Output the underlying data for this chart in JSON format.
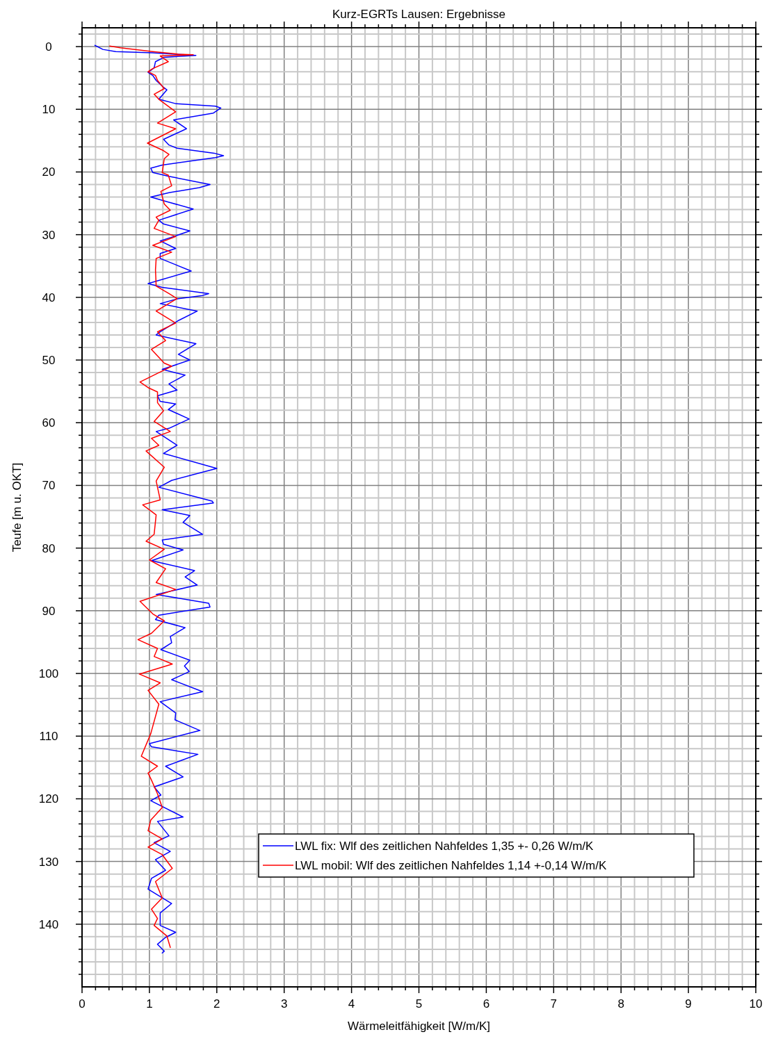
{
  "chart_data": {
    "type": "line",
    "title": "Kurz-EGRTs Lausen: Ergebnisse",
    "xlabel": "Wärmeleitfähigkeit [W/m/K]",
    "ylabel": "Teufe [m u. OKT]",
    "xlim": [
      0,
      10
    ],
    "ylim": [
      150,
      -3
    ],
    "xticks": [
      0,
      {
        "value": 0.2,
        "label": null
      },
      {
        "value": 0.4,
        "label": null
      },
      {
        "value": 0.6,
        "label": null
      },
      {
        "value": 0.8,
        "label": null
      },
      1,
      {
        "value": 1.2,
        "label": null
      },
      {
        "value": 1.4,
        "label": null
      },
      {
        "value": 1.6,
        "label": null
      },
      {
        "value": 1.8,
        "label": null
      },
      2,
      {
        "value": 2.2,
        "label": null
      },
      {
        "value": 2.4,
        "label": null
      },
      {
        "value": 2.6,
        "label": null
      },
      {
        "value": 2.8,
        "label": null
      },
      3,
      {
        "value": 3.2,
        "label": null
      },
      {
        "value": 3.4,
        "label": null
      },
      {
        "value": 3.6,
        "label": null
      },
      {
        "value": 3.8,
        "label": null
      },
      4,
      {
        "value": 4.2,
        "label": null
      },
      {
        "value": 4.4,
        "label": null
      },
      {
        "value": 4.6,
        "label": null
      },
      {
        "value": 4.8,
        "label": null
      },
      5,
      {
        "value": 5.2,
        "label": null
      },
      {
        "value": 5.4,
        "label": null
      },
      {
        "value": 5.6,
        "label": null
      },
      {
        "value": 5.8,
        "label": null
      },
      6,
      {
        "value": 6.2,
        "label": null
      },
      {
        "value": 6.4,
        "label": null
      },
      {
        "value": 6.6,
        "label": null
      },
      {
        "value": 6.8,
        "label": null
      },
      7,
      {
        "value": 7.2,
        "label": null
      },
      {
        "value": 7.4,
        "label": null
      },
      {
        "value": 7.6,
        "label": null
      },
      {
        "value": 7.8,
        "label": null
      },
      8,
      {
        "value": 8.2,
        "label": null
      },
      {
        "value": 8.4,
        "label": null
      },
      {
        "value": 8.6,
        "label": null
      },
      {
        "value": 8.8,
        "label": null
      },
      9,
      {
        "value": 9.2,
        "label": null
      },
      {
        "value": 9.4,
        "label": null
      },
      {
        "value": 9.6,
        "label": null
      },
      {
        "value": 9.8,
        "label": null
      },
      10
    ],
    "yticks": [
      {
        "value": -2,
        "label": null
      },
      0,
      {
        "value": 2,
        "label": null
      },
      {
        "value": 4,
        "label": null
      },
      {
        "value": 6,
        "label": null
      },
      {
        "value": 8,
        "label": null
      },
      10,
      {
        "value": 12,
        "label": null
      },
      {
        "value": 14,
        "label": null
      },
      {
        "value": 16,
        "label": null
      },
      {
        "value": 18,
        "label": null
      },
      20,
      {
        "value": 22,
        "label": null
      },
      {
        "value": 24,
        "label": null
      },
      {
        "value": 26,
        "label": null
      },
      {
        "value": 28,
        "label": null
      },
      30,
      {
        "value": 32,
        "label": null
      },
      {
        "value": 34,
        "label": null
      },
      {
        "value": 36,
        "label": null
      },
      {
        "value": 38,
        "label": null
      },
      40,
      {
        "value": 42,
        "label": null
      },
      {
        "value": 44,
        "label": null
      },
      {
        "value": 46,
        "label": null
      },
      {
        "value": 48,
        "label": null
      },
      50,
      {
        "value": 52,
        "label": null
      },
      {
        "value": 54,
        "label": null
      },
      {
        "value": 56,
        "label": null
      },
      {
        "value": 58,
        "label": null
      },
      60,
      {
        "value": 62,
        "label": null
      },
      {
        "value": 64,
        "label": null
      },
      {
        "value": 66,
        "label": null
      },
      {
        "value": 68,
        "label": null
      },
      70,
      {
        "value": 72,
        "label": null
      },
      {
        "value": 74,
        "label": null
      },
      {
        "value": 76,
        "label": null
      },
      {
        "value": 78,
        "label": null
      },
      80,
      {
        "value": 82,
        "label": null
      },
      {
        "value": 84,
        "label": null
      },
      {
        "value": 86,
        "label": null
      },
      {
        "value": 88,
        "label": null
      },
      90,
      {
        "value": 92,
        "label": null
      },
      {
        "value": 94,
        "label": null
      },
      {
        "value": 96,
        "label": null
      },
      {
        "value": 98,
        "label": null
      },
      100,
      {
        "value": 102,
        "label": null
      },
      {
        "value": 104,
        "label": null
      },
      {
        "value": 106,
        "label": null
      },
      {
        "value": 108,
        "label": null
      },
      110,
      {
        "value": 112,
        "label": null
      },
      {
        "value": 114,
        "label": null
      },
      {
        "value": 116,
        "label": null
      },
      {
        "value": 118,
        "label": null
      },
      120,
      {
        "value": 122,
        "label": null
      },
      {
        "value": 124,
        "label": null
      },
      {
        "value": 126,
        "label": null
      },
      {
        "value": 128,
        "label": null
      },
      130,
      {
        "value": 132,
        "label": null
      },
      {
        "value": 134,
        "label": null
      },
      {
        "value": 136,
        "label": null
      },
      {
        "value": 138,
        "label": null
      },
      140,
      {
        "value": 142,
        "label": null
      },
      {
        "value": 144,
        "label": null
      },
      {
        "value": 146,
        "label": null
      },
      {
        "value": 148,
        "label": null
      }
    ],
    "grid": true,
    "legend": "bottom right",
    "series": [
      {
        "name": "LWL fix: Wlf des zeitlichen Nahfeldes 1,35 +- 0,26 W/m/K",
        "color": "#0000ff",
        "x": [
          0.19,
          0.31,
          0.5,
          1.05,
          1.69,
          1.22,
          1.09,
          1.07,
          0.98,
          1.05,
          1.1,
          1.21,
          1.26,
          1.14,
          1.39,
          1.98,
          2.06,
          1.95,
          1.36,
          1.55,
          1.21,
          1.29,
          1.41,
          1.96,
          2.1,
          1.98,
          1.19,
          1.02,
          1.05,
          1.29,
          1.9,
          1.74,
          1.29,
          1.02,
          1.28,
          1.65,
          1.14,
          1.21,
          1.6,
          1.36,
          1.16,
          1.39,
          1.16,
          1.16,
          1.62,
          0.98,
          1.19,
          1.88,
          1.79,
          1.43,
          1.16,
          1.71,
          1.43,
          1.16,
          1.1,
          1.69,
          1.43,
          1.6,
          1.19,
          1.53,
          1.29,
          1.41,
          1.12,
          1.16,
          1.39,
          1.28,
          1.59,
          1.29,
          1.1,
          1.41,
          1.21,
          2.0,
          1.33,
          1.14,
          1.93,
          1.95,
          1.19,
          1.6,
          1.5,
          1.79,
          1.19,
          1.21,
          1.5,
          1.03,
          1.67,
          1.53,
          1.71,
          1.1,
          1.88,
          1.9,
          1.14,
          1.09,
          1.53,
          1.31,
          1.33,
          1.17,
          1.6,
          1.52,
          1.59,
          1.33,
          1.79,
          1.16,
          1.39,
          1.38,
          1.75,
          1.0,
          1.03,
          1.72,
          1.24,
          1.5,
          1.07,
          1.17,
          1.02,
          1.5,
          1.12,
          1.29,
          1.07,
          1.31,
          1.09,
          1.24,
          1.03,
          0.98,
          1.33,
          1.16,
          1.16,
          1.39,
          1.24,
          1.12,
          1.22,
          1.19
        ],
        "values": [
          -0.2,
          0.45,
          0.8,
          1.0,
          1.4,
          1.7,
          2.4,
          3.4,
          4.1,
          4.6,
          5.4,
          6.5,
          6.9,
          8.4,
          9.1,
          9.5,
          9.8,
          10.6,
          11.7,
          13.1,
          14.8,
          15.7,
          16.2,
          17.0,
          17.4,
          17.7,
          18.9,
          19.4,
          20.1,
          20.7,
          22.0,
          22.5,
          23.3,
          24.0,
          24.8,
          25.9,
          27.7,
          28.3,
          29.4,
          30.3,
          31.0,
          32.2,
          33.0,
          33.8,
          35.8,
          37.8,
          38.4,
          39.4,
          39.7,
          40.2,
          41.0,
          42.2,
          43.7,
          45.5,
          46.0,
          47.4,
          49.1,
          50.0,
          51.5,
          52.4,
          53.8,
          54.8,
          55.7,
          56.6,
          57.0,
          57.9,
          59.4,
          60.9,
          61.4,
          63.6,
          64.9,
          67.3,
          69.2,
          70.3,
          72.5,
          72.8,
          73.9,
          74.8,
          75.9,
          77.8,
          78.7,
          79.4,
          80.3,
          82.0,
          83.6,
          84.6,
          85.9,
          87.4,
          88.8,
          89.4,
          90.7,
          91.4,
          92.7,
          94.1,
          95.1,
          96.2,
          97.9,
          98.8,
          99.7,
          101.0,
          102.9,
          104.5,
          106.3,
          107.4,
          109.1,
          111.2,
          111.7,
          112.9,
          114.8,
          116.5,
          118.1,
          119.4,
          120.3,
          122.9,
          123.6,
          125.9,
          127.0,
          128.4,
          129.7,
          131.4,
          132.7,
          134.4,
          136.7,
          138.2,
          140.2,
          141.3,
          142.1,
          143.2,
          144.3,
          144.6
        ]
      },
      {
        "name": "LWL mobil: Wlf des zeitlichen Nahfeldes 1,14 +-0,14 W/m/K",
        "color": "#ff0000",
        "x": [
          0.41,
          0.57,
          1.05,
          1.43,
          1.65,
          1.16,
          1.28,
          1.05,
          0.98,
          1.09,
          1.12,
          1.22,
          1.07,
          1.14,
          1.39,
          1.12,
          1.39,
          0.97,
          1.21,
          1.29,
          1.22,
          1.19,
          1.28,
          1.33,
          1.17,
          1.22,
          1.31,
          1.1,
          1.14,
          1.07,
          1.39,
          1.05,
          1.33,
          1.1,
          1.09,
          1.1,
          1.29,
          1.41,
          1.1,
          1.39,
          1.12,
          1.24,
          1.03,
          1.22,
          1.33,
          0.86,
          0.98,
          1.12,
          1.12,
          1.21,
          1.07,
          1.31,
          1.03,
          1.14,
          0.95,
          1.22,
          1.1,
          1.16,
          0.9,
          1.1,
          1.07,
          0.95,
          1.22,
          1.0,
          1.24,
          1.1,
          1.39,
          0.86,
          1.05,
          1.22,
          1.03,
          0.83,
          1.12,
          1.07,
          1.34,
          0.85,
          1.16,
          0.98,
          1.14,
          1.02,
          0.88,
          1.12,
          0.98,
          1.03,
          1.12,
          1.19,
          1.02,
          0.98,
          1.19,
          0.98,
          1.19,
          1.34,
          1.09,
          1.19,
          1.03,
          1.12,
          1.07,
          1.26,
          1.31
        ],
        "values": [
          -0.1,
          0.2,
          0.8,
          1.2,
          1.3,
          1.5,
          2.4,
          3.5,
          4.0,
          4.6,
          5.4,
          6.7,
          7.6,
          8.4,
          10.4,
          12.2,
          13.1,
          15.4,
          16.6,
          17.2,
          17.9,
          20.1,
          20.5,
          22.2,
          23.1,
          25.1,
          26.1,
          27.2,
          27.7,
          29.0,
          30.3,
          31.7,
          32.8,
          33.8,
          35.6,
          38.2,
          39.4,
          40.2,
          42.2,
          44.1,
          45.5,
          46.9,
          48.3,
          50.5,
          51.0,
          53.5,
          54.4,
          55.1,
          56.8,
          58.1,
          59.8,
          61.4,
          62.5,
          63.6,
          64.5,
          67.1,
          69.3,
          72.3,
          73.1,
          74.7,
          77.8,
          78.9,
          80.2,
          81.9,
          83.3,
          85.5,
          86.6,
          88.5,
          90.5,
          91.6,
          93.6,
          94.6,
          96.0,
          97.3,
          98.5,
          100.1,
          101.5,
          102.7,
          104.9,
          109.6,
          113.2,
          114.8,
          115.9,
          117.0,
          119.2,
          121.4,
          123.4,
          125.1,
          126.4,
          127.7,
          128.9,
          131.1,
          133.2,
          135.8,
          137.6,
          139.1,
          140.2,
          141.9,
          143.7
        ]
      }
    ]
  }
}
